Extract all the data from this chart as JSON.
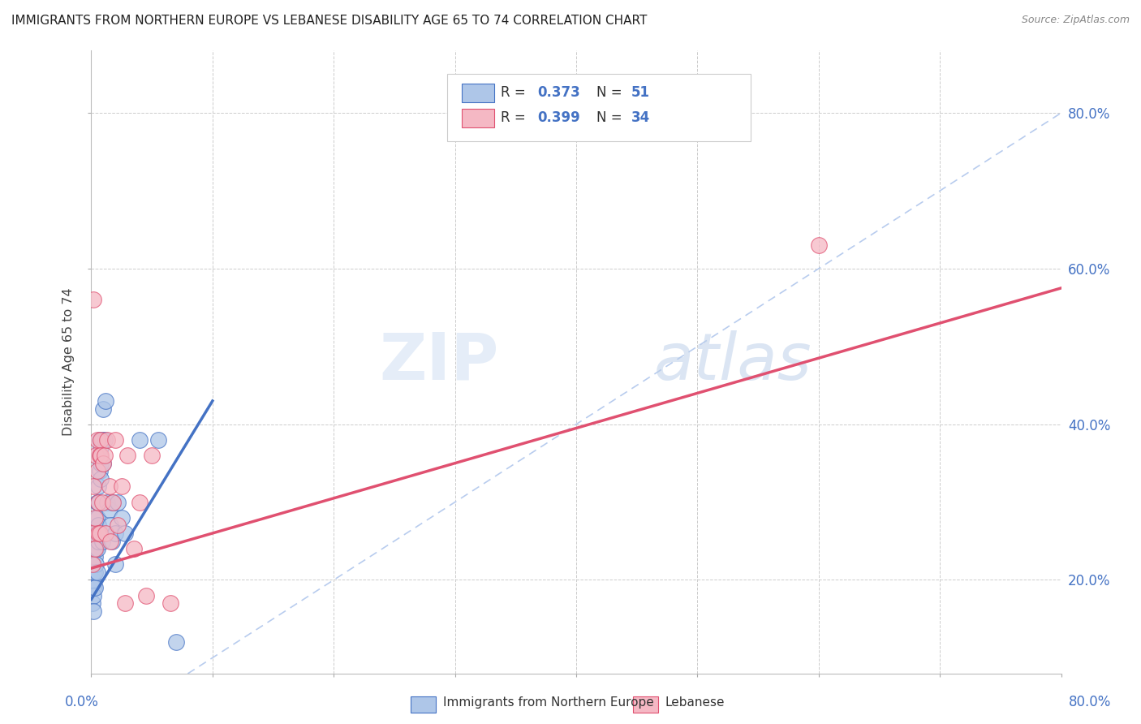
{
  "title": "IMMIGRANTS FROM NORTHERN EUROPE VS LEBANESE DISABILITY AGE 65 TO 74 CORRELATION CHART",
  "source": "Source: ZipAtlas.com",
  "ylabel": "Disability Age 65 to 74",
  "legend1_label": "Immigrants from Northern Europe",
  "legend2_label": "Lebanese",
  "R1": "0.373",
  "N1": "51",
  "R2": "0.399",
  "N2": "34",
  "color_blue": "#aec6e8",
  "color_blue_dark": "#4472c4",
  "color_pink": "#f5b8c4",
  "color_pink_dark": "#e05070",
  "color_dash": "#b8ccee",
  "xmin": 0.0,
  "xmax": 0.8,
  "ymin": 0.08,
  "ymax": 0.88,
  "blue_scatter_x": [
    0.001,
    0.001,
    0.001,
    0.002,
    0.002,
    0.002,
    0.002,
    0.002,
    0.003,
    0.003,
    0.003,
    0.003,
    0.004,
    0.004,
    0.004,
    0.004,
    0.005,
    0.005,
    0.005,
    0.005,
    0.005,
    0.006,
    0.006,
    0.006,
    0.006,
    0.007,
    0.007,
    0.007,
    0.008,
    0.008,
    0.008,
    0.009,
    0.009,
    0.01,
    0.01,
    0.011,
    0.011,
    0.012,
    0.013,
    0.015,
    0.016,
    0.017,
    0.018,
    0.02,
    0.02,
    0.022,
    0.025,
    0.028,
    0.04,
    0.055,
    0.07
  ],
  "blue_scatter_y": [
    0.22,
    0.2,
    0.17,
    0.24,
    0.21,
    0.19,
    0.18,
    0.16,
    0.25,
    0.23,
    0.21,
    0.19,
    0.28,
    0.26,
    0.24,
    0.22,
    0.3,
    0.28,
    0.26,
    0.24,
    0.21,
    0.32,
    0.3,
    0.27,
    0.25,
    0.38,
    0.36,
    0.34,
    0.37,
    0.35,
    0.33,
    0.38,
    0.25,
    0.42,
    0.35,
    0.38,
    0.26,
    0.43,
    0.3,
    0.29,
    0.27,
    0.25,
    0.3,
    0.22,
    0.26,
    0.3,
    0.28,
    0.26,
    0.38,
    0.38,
    0.12
  ],
  "pink_scatter_x": [
    0.001,
    0.001,
    0.002,
    0.002,
    0.003,
    0.003,
    0.004,
    0.005,
    0.005,
    0.006,
    0.006,
    0.007,
    0.007,
    0.008,
    0.008,
    0.009,
    0.01,
    0.011,
    0.012,
    0.013,
    0.015,
    0.016,
    0.018,
    0.02,
    0.022,
    0.025,
    0.028,
    0.03,
    0.035,
    0.04,
    0.045,
    0.05,
    0.065,
    0.6
  ],
  "pink_scatter_y": [
    0.26,
    0.22,
    0.56,
    0.32,
    0.28,
    0.24,
    0.36,
    0.38,
    0.34,
    0.3,
    0.26,
    0.36,
    0.26,
    0.38,
    0.36,
    0.3,
    0.35,
    0.36,
    0.26,
    0.38,
    0.32,
    0.25,
    0.3,
    0.38,
    0.27,
    0.32,
    0.17,
    0.36,
    0.24,
    0.3,
    0.18,
    0.36,
    0.17,
    0.63
  ],
  "blue_line_x0": 0.0,
  "blue_line_y0": 0.175,
  "blue_line_x1": 0.1,
  "blue_line_y1": 0.43,
  "pink_line_x0": 0.0,
  "pink_line_y0": 0.215,
  "pink_line_x1": 0.8,
  "pink_line_y1": 0.575,
  "yticks": [
    0.2,
    0.4,
    0.6,
    0.8
  ],
  "ytick_labels": [
    "20.0%",
    "40.0%",
    "60.0%",
    "80.0%"
  ]
}
